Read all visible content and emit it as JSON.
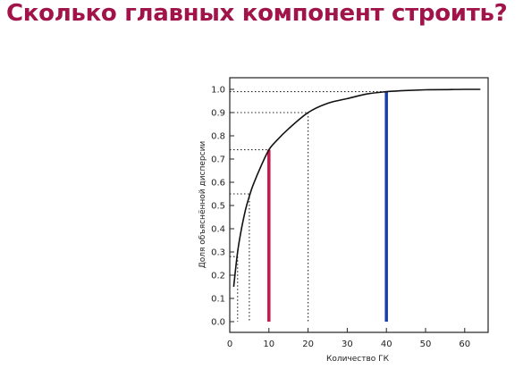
{
  "slide": {
    "title": "Сколько главных компонент строить?"
  },
  "colors": {
    "title": "#a0144a",
    "curve": "#111111",
    "highlight_red": "#c8174d",
    "highlight_blue": "#1c3fa5",
    "guides": "#222222"
  },
  "chart_data": {
    "type": "line",
    "xlabel": "Количество ГК",
    "ylabel": "Доля объяснённой дисперсии",
    "xlim": [
      0,
      65
    ],
    "ylim": [
      0,
      1.0
    ],
    "xticks": [
      0,
      10,
      20,
      30,
      40,
      50,
      60
    ],
    "yticks": [
      0.0,
      0.1,
      0.2,
      0.3,
      0.4,
      0.5,
      0.6,
      0.7,
      0.8,
      0.9,
      1.0
    ],
    "series": [
      {
        "x": [
          1,
          2,
          3,
          4,
          5,
          6,
          8,
          10,
          12,
          15,
          20,
          25,
          30,
          35,
          40,
          45,
          50,
          55,
          60,
          64
        ],
        "values": [
          0.15,
          0.3,
          0.4,
          0.48,
          0.54,
          0.59,
          0.67,
          0.74,
          0.78,
          0.83,
          0.9,
          0.94,
          0.96,
          0.98,
          0.99,
          0.995,
          0.998,
          0.999,
          1.0,
          1.0
        ]
      }
    ],
    "guide_points": [
      {
        "x": 2,
        "y": 0.28
      },
      {
        "x": 5,
        "y": 0.55
      },
      {
        "x": 10,
        "y": 0.74
      },
      {
        "x": 20,
        "y": 0.9
      },
      {
        "x": 40,
        "y": 0.99
      }
    ],
    "highlights": [
      {
        "x": 10,
        "y": 0.74,
        "color": "#c8174d"
      },
      {
        "x": 40,
        "y": 0.99,
        "color": "#1c3fa5"
      }
    ],
    "grid": false
  }
}
